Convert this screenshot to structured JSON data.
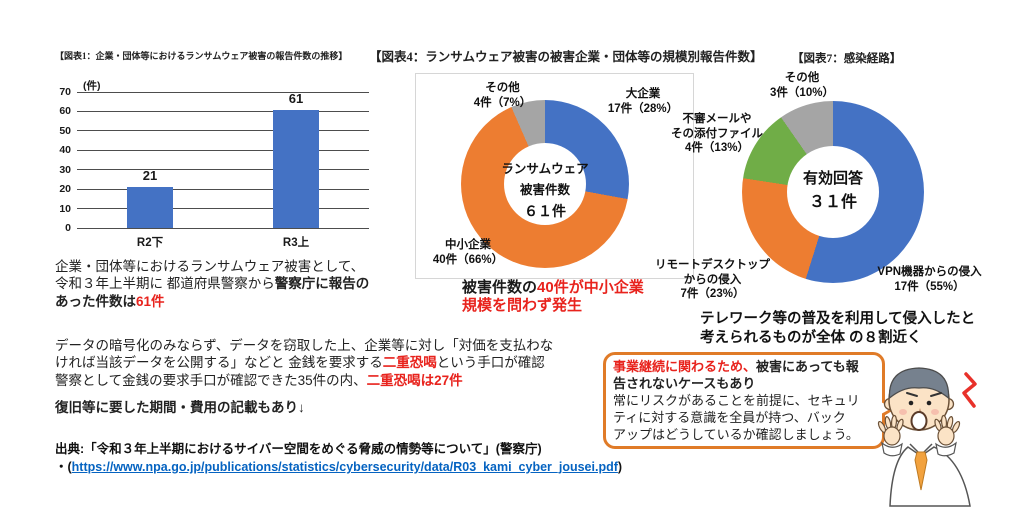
{
  "chart_data": [
    {
      "type": "bar",
      "title": "【図表1：企業・団体等におけるランサムウェア被害の報告件数の推移】",
      "unit_label": "(件)",
      "categories": [
        "R2下",
        "R3上"
      ],
      "values": [
        21,
        61
      ],
      "ylim": [
        0,
        70
      ],
      "ytick_step": 10,
      "bar_color": "#4472C4",
      "grid": true,
      "xlabel": "",
      "ylabel": "件"
    },
    {
      "type": "pie",
      "subtype": "donut",
      "title": "【図表4：ランサムウェア被害の被害企業・団体等の規模別報告件数】",
      "total": 61,
      "center_lines": [
        "ランサムウェア",
        "被害件数",
        "６１件"
      ],
      "series": [
        {
          "name": "大企業",
          "value": 17,
          "pct": 28,
          "label_line1": "大企業",
          "label_line2": "17件（28%）",
          "color": "#4472C4"
        },
        {
          "name": "中小企業",
          "value": 40,
          "pct": 66,
          "label_line1": "中小企業",
          "label_line2": "40件（66%）",
          "color": "#ED7D31"
        },
        {
          "name": "その他",
          "value": 4,
          "pct": 7,
          "label_line1": "その他",
          "label_line2": "4件（7%）",
          "color": "#A5A5A5"
        }
      ],
      "legend_position": "outside-labels"
    },
    {
      "type": "pie",
      "subtype": "donut",
      "title": "【図表7：感染経路】",
      "total": 31,
      "center_lines": [
        "有効回答",
        "３１件"
      ],
      "series": [
        {
          "name": "VPN機器からの侵入",
          "value": 17,
          "pct": 55,
          "label_line1": "VPN機器からの侵入",
          "label_line2": "17件（55%）",
          "color": "#4472C4"
        },
        {
          "name": "リモートデスクトップからの侵入",
          "value": 7,
          "pct": 23,
          "label_line1": "リモートデスクトップ",
          "label_line2": "からの侵入",
          "label_line3": "7件（23%）",
          "color": "#ED7D31"
        },
        {
          "name": "不審メールやその添付ファイル",
          "value": 4,
          "pct": 13,
          "label_line1": "不審メールや",
          "label_line2": "その添付ファイル",
          "label_line3": "4件（13%）",
          "color": "#70AD47"
        },
        {
          "name": "その他",
          "value": 3,
          "pct": 10,
          "label_line1": "その他",
          "label_line2": "3件（10%）",
          "color": "#A5A5A5"
        }
      ],
      "legend_position": "outside-labels"
    }
  ],
  "texts": {
    "para1": {
      "line1": "企業・団体等におけるランサムウェア被害として、",
      "line2_normal": "令和３年上半期に 都道府県警察から",
      "line2_bold": "警察庁に報告の",
      "line3_bold": "あった件数は",
      "line3_red": "61件"
    },
    "para2": {
      "line1": "データの暗号化のみならず、データを窃取した上、企業等に対し「対価を支払わな",
      "line2_a": "ければ当該データを公開する」などと 金銭を要求する",
      "line2_red": "二重恐喝",
      "line2_c": "という手口が確認",
      "line3_a": "警察として金銭の要求手口が確認できた35件の内、",
      "line3_red": "二重恐喝は27件"
    },
    "para3": "復旧等に要した期間・費用の記載もあり↓",
    "fig4_note": {
      "black": "被害件数の",
      "red1": "40件が中小企業",
      "red2": "規模を問わず発生"
    },
    "fig7_note": {
      "line1": "テレワーク等の普及を利用して侵入したと",
      "line2": "考えられるものが全体 の８割近く"
    },
    "bubble": {
      "line1_red": "事業継続に関わるため、",
      "line1_black": "被害にあっても報",
      "line2": "告されないケースもあり",
      "line3": "常にリスクがあることを前提に、セキュリ",
      "line4": "ティに対する意識を全員が持つ、バック",
      "line5": "アップはどうしているか確認しましょう。"
    },
    "source": {
      "line1": "出典:「令和３年上半期におけるサイバー空間をめぐる脅威の情勢等について」(警察庁)",
      "prefix": "・(",
      "url": "https://www.npa.go.jp/publications/statistics/cybersecurity/data/R03_kami_cyber_jousei.pdf",
      "suffix": ")"
    }
  },
  "colors": {
    "chart_blue": "#4472C4",
    "chart_orange": "#ED7D31",
    "chart_gray": "#A5A5A5",
    "chart_green": "#70AD47",
    "accent_red": "#E8231D",
    "link_blue": "#0563C1",
    "bubble_border_orange": "#E07B28"
  }
}
